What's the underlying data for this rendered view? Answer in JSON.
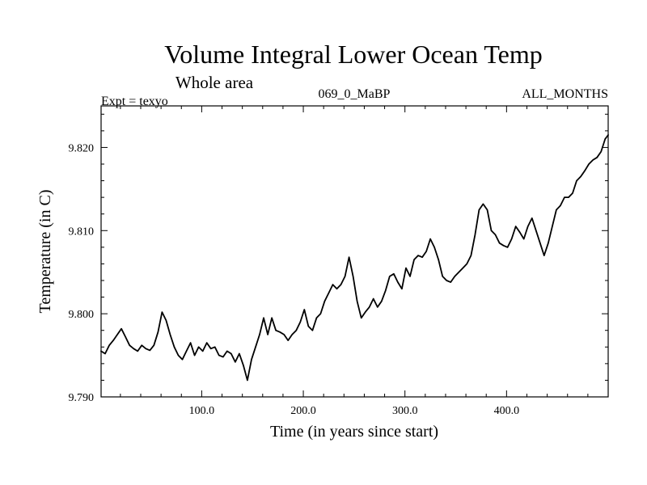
{
  "chart_data": {
    "type": "line",
    "title": "Volume Integral Lower Ocean Temp",
    "subtitle": "Whole area",
    "annotations": {
      "experiment": "Expt = texyo",
      "run": "069_0_MaBP",
      "months": "ALL_MONTHS"
    },
    "xlabel": "Time (in years since start)",
    "ylabel": "Temperature (in C)",
    "xlim": [
      1,
      500
    ],
    "ylim": [
      9.79,
      9.825
    ],
    "x_ticks": [
      100,
      200,
      300,
      400
    ],
    "x_tick_labels": [
      "100.0",
      "200.0",
      "300.0",
      "400.0"
    ],
    "y_ticks": [
      9.79,
      9.8,
      9.81,
      9.82
    ],
    "y_tick_labels": [
      "9.790",
      "9.800",
      "9.810",
      "9.820"
    ],
    "grid": false,
    "series": [
      {
        "x": [
          1,
          5,
          9,
          13,
          17,
          21,
          25,
          29,
          33,
          37,
          41,
          45,
          49,
          53,
          57,
          61,
          65,
          69,
          73,
          77,
          81,
          85,
          89,
          93,
          97,
          101,
          105,
          109,
          113,
          117,
          121,
          125,
          129,
          133,
          137,
          141,
          145,
          149,
          153,
          157,
          161,
          165,
          169,
          173,
          177,
          181,
          185,
          189,
          193,
          197,
          201,
          205,
          209,
          213,
          217,
          221,
          225,
          229,
          233,
          237,
          241,
          245,
          249,
          253,
          257,
          261,
          265,
          269,
          273,
          277,
          281,
          285,
          289,
          293,
          297,
          301,
          305,
          309,
          313,
          317,
          321,
          325,
          329,
          333,
          337,
          341,
          345,
          349,
          353,
          357,
          361,
          365,
          369,
          373,
          377,
          381,
          385,
          389,
          393,
          397,
          401,
          405,
          409,
          413,
          417,
          421,
          425,
          429,
          433,
          437,
          441,
          445,
          449,
          453,
          457,
          461,
          465,
          469,
          473,
          477,
          481,
          485,
          489,
          493,
          497,
          500
        ],
        "y": [
          9.7955,
          9.7952,
          9.7962,
          9.7968,
          9.7975,
          9.7982,
          9.7972,
          9.7962,
          9.7958,
          9.7955,
          9.7962,
          9.7958,
          9.7956,
          9.7962,
          9.7978,
          9.8002,
          9.7992,
          9.7975,
          9.796,
          9.795,
          9.7945,
          9.7955,
          9.7965,
          9.795,
          9.796,
          9.7955,
          9.7965,
          9.7958,
          9.796,
          9.795,
          9.7948,
          9.7955,
          9.7952,
          9.7942,
          9.7952,
          9.7938,
          9.792,
          9.7945,
          9.796,
          9.7975,
          9.7995,
          9.7975,
          9.7995,
          9.798,
          9.7978,
          9.7975,
          9.7968,
          9.7975,
          9.798,
          9.799,
          9.8005,
          9.7985,
          9.798,
          9.7995,
          9.8,
          9.8015,
          9.8025,
          9.8035,
          9.803,
          9.8035,
          9.8045,
          9.8068,
          9.8045,
          9.8015,
          9.7995,
          9.8002,
          9.8008,
          9.8018,
          9.8008,
          9.8015,
          9.8028,
          9.8045,
          9.8048,
          9.8038,
          9.803,
          9.8055,
          9.8045,
          9.8065,
          9.807,
          9.8068,
          9.8075,
          9.809,
          9.808,
          9.8065,
          9.8045,
          9.804,
          9.8038,
          9.8045,
          9.805,
          9.8055,
          9.806,
          9.807,
          9.8095,
          9.8125,
          9.8132,
          9.8125,
          9.81,
          9.8095,
          9.8085,
          9.8082,
          9.808,
          9.809,
          9.8105,
          9.8098,
          9.809,
          9.8105,
          9.8115,
          9.81,
          9.8085,
          9.807,
          9.8085,
          9.8105,
          9.8125,
          9.813,
          9.814,
          9.814,
          9.8145,
          9.816,
          9.8165,
          9.8172,
          9.818,
          9.8185,
          9.8188,
          9.8195,
          9.821,
          9.8215
        ]
      }
    ]
  }
}
